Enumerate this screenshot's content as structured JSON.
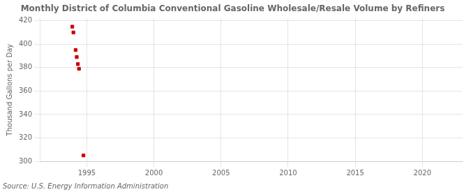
{
  "chart_data": {
    "type": "scatter",
    "title": "Monthly District of Columbia Conventional Gasoline Wholesale/Resale Volume by Refiners",
    "ylabel": "Thousand Gallons per Day",
    "annotations": [
      "Source: U.S. Energy Information Administration"
    ],
    "x": [
      1993.917,
      1994.0,
      1994.167,
      1994.25,
      1994.333,
      1994.417,
      1994.75
    ],
    "values": [
      415,
      410,
      395,
      389,
      383,
      379,
      305
    ],
    "color": "#cc0000",
    "marker": "square",
    "xlim": [
      1991.5,
      2023
    ],
    "ylim": [
      300,
      422
    ],
    "xticks": [
      1995,
      2000,
      2005,
      2010,
      2015,
      2020
    ],
    "yticks": [
      300,
      320,
      340,
      360,
      380,
      400,
      420
    ],
    "grid": true
  }
}
